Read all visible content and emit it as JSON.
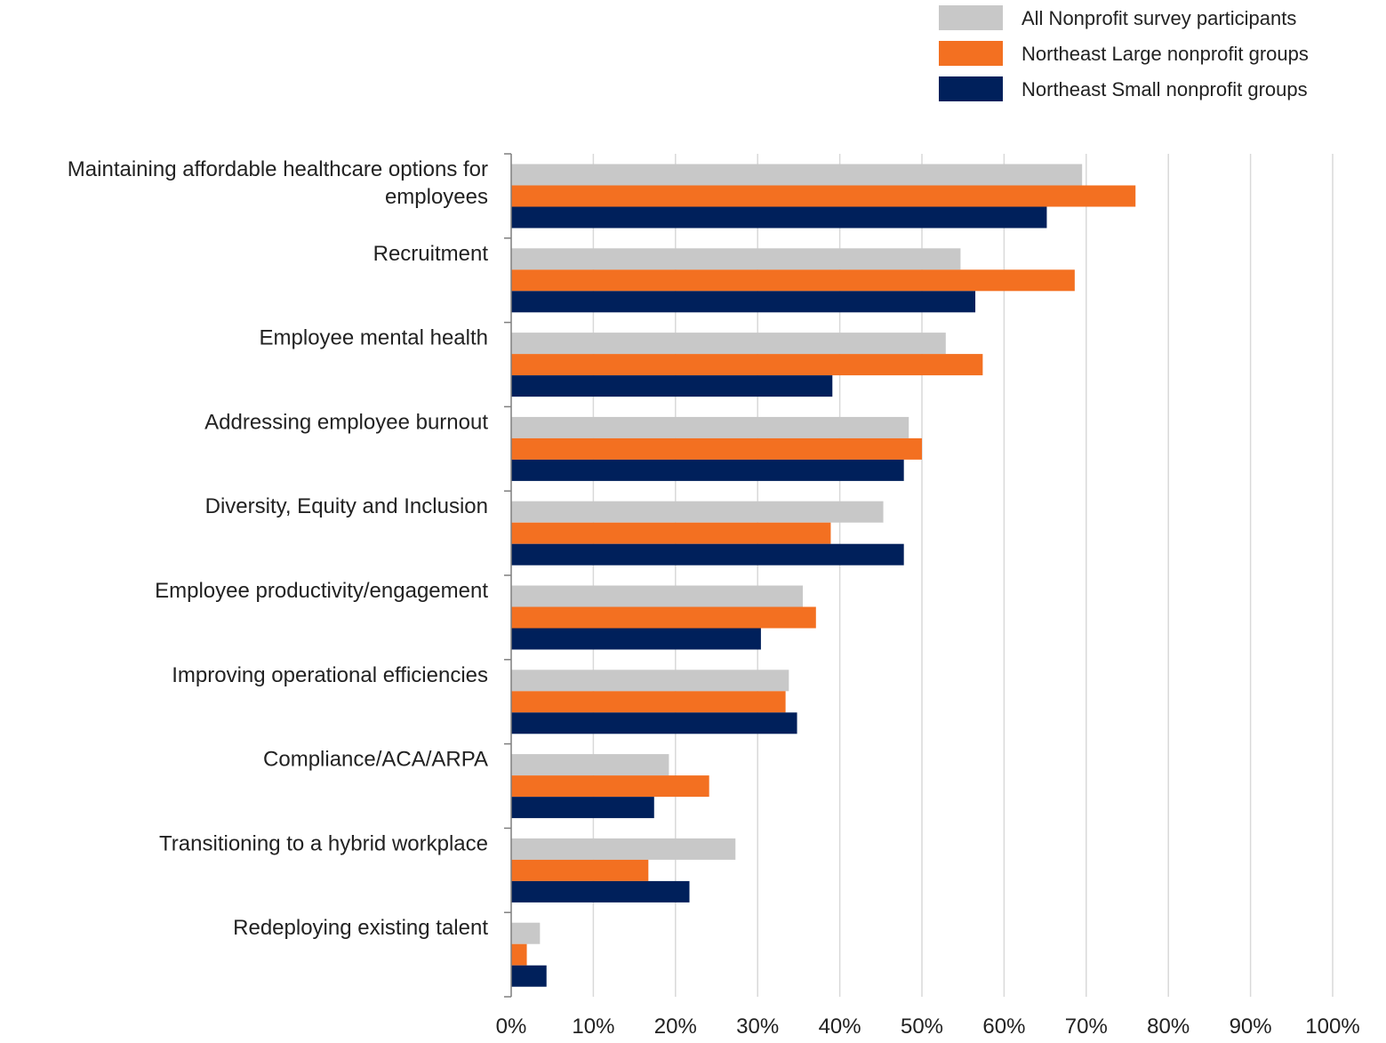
{
  "chart_data": {
    "type": "bar",
    "orientation": "horizontal",
    "categories": [
      [
        "Maintaining affordable healthcare options for",
        "employees"
      ],
      [
        "Recruitment"
      ],
      [
        "Employee mental health"
      ],
      [
        "Addressing employee burnout"
      ],
      [
        "Diversity, Equity and Inclusion"
      ],
      [
        "Employee productivity/engagement"
      ],
      [
        "Improving operational efficiencies"
      ],
      [
        "Compliance/ACA/ARPA"
      ],
      [
        "Transitioning to a hybrid workplace"
      ],
      [
        "Redeploying existing talent"
      ]
    ],
    "series": [
      {
        "name": "All Nonprofit survey participants",
        "color": "#c8c8c8",
        "values": [
          69.5,
          54.7,
          52.9,
          48.4,
          45.3,
          35.5,
          33.8,
          19.2,
          27.3,
          3.5
        ]
      },
      {
        "name": "Northeast Large nonprofit groups",
        "color": "#f37021",
        "values": [
          76.0,
          68.6,
          57.4,
          50.0,
          38.9,
          37.1,
          33.4,
          24.1,
          16.7,
          1.9
        ]
      },
      {
        "name": "Northeast Small nonprofit groups",
        "color": "#00205b",
        "values": [
          65.2,
          56.5,
          39.1,
          47.8,
          47.8,
          30.4,
          34.8,
          17.4,
          21.7,
          4.3
        ]
      }
    ],
    "xlim": [
      0,
      100
    ],
    "x_ticks": [
      "0%",
      "10%",
      "20%",
      "30%",
      "40%",
      "50%",
      "60%",
      "70%",
      "80%",
      "90%",
      "100%"
    ],
    "grid": true,
    "legend_position": "top-right"
  }
}
